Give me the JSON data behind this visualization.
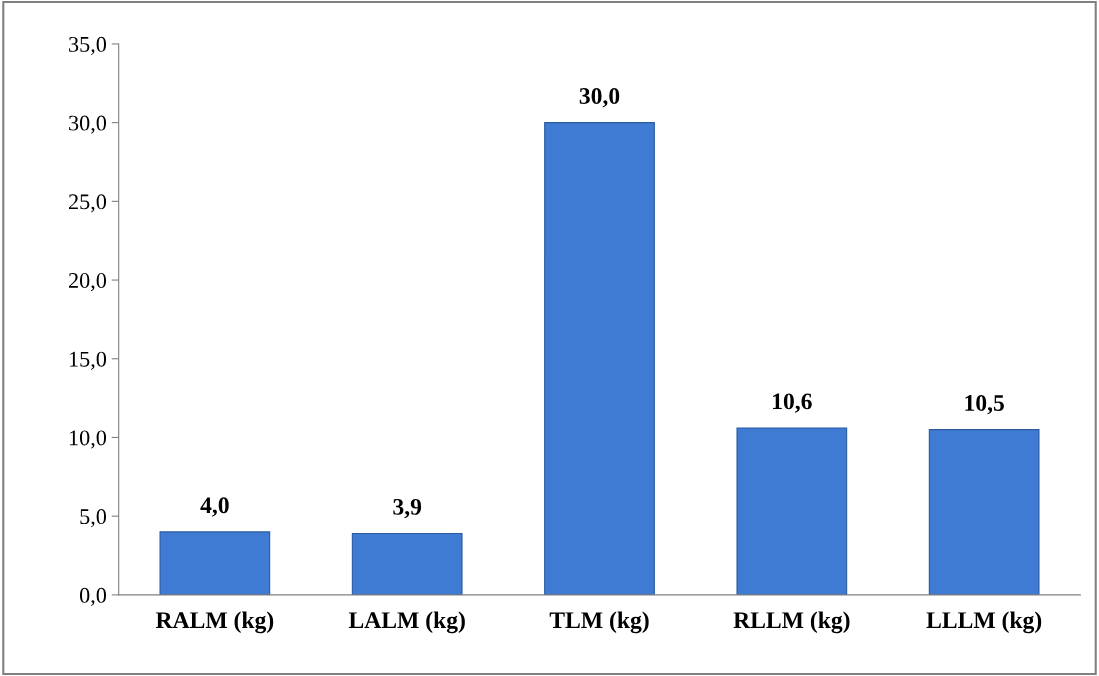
{
  "chart_data": {
    "type": "bar",
    "categories": [
      "RALM (kg)",
      "LALM (kg)",
      "TLM (kg)",
      "RLLM (kg)",
      "LLLM (kg)"
    ],
    "values": [
      4.0,
      3.9,
      30.0,
      10.6,
      10.5
    ],
    "value_labels": [
      "4,0",
      "3,9",
      "30,0",
      "10,6",
      "10,5"
    ],
    "color": "#3f7bd2",
    "ylim": [
      0,
      35
    ],
    "yticks": [
      {
        "value": 0,
        "label": "0,0"
      },
      {
        "value": 5,
        "label": "5,0"
      },
      {
        "value": 10,
        "label": "10,0"
      },
      {
        "value": 15,
        "label": "15,0"
      },
      {
        "value": 20,
        "label": "20,0"
      },
      {
        "value": 25,
        "label": "25,0"
      },
      {
        "value": 30,
        "label": "30,0"
      },
      {
        "value": 35,
        "label": "35,0"
      }
    ],
    "grid": false
  }
}
